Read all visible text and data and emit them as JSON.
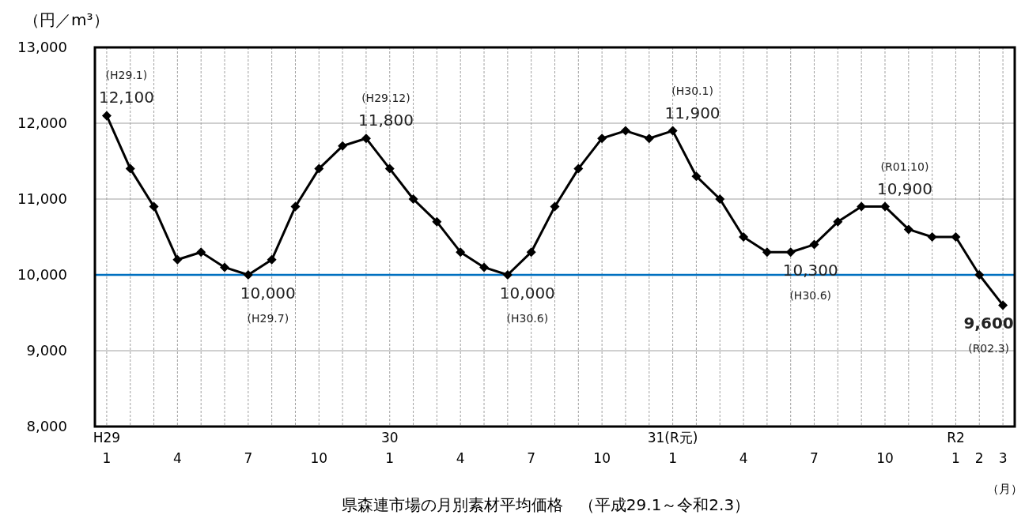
{
  "chart_data": {
    "type": "line",
    "title": "県森連市場の月別素材平均価格　（平成29.1～令和2.3）",
    "ylabel": "（円／m³）",
    "xlabel": "（月）",
    "categories": [
      "H29\n1",
      null,
      null,
      "4",
      null,
      null,
      "7",
      null,
      null,
      "10",
      null,
      null,
      "30\n1",
      null,
      null,
      "4",
      null,
      null,
      "7",
      null,
      null,
      "10",
      null,
      null,
      "31(R元)\n1",
      null,
      null,
      "4",
      null,
      null,
      "7",
      null,
      null,
      "10",
      null,
      null,
      "R2\n1",
      "2",
      "3"
    ],
    "values": [
      12100,
      11400,
      10900,
      10200,
      10300,
      10100,
      10000,
      10200,
      10900,
      11400,
      11700,
      11800,
      11400,
      11000,
      10700,
      10300,
      10100,
      10000,
      10300,
      10900,
      11400,
      11800,
      11900,
      11800,
      11900,
      11300,
      11000,
      10500,
      10300,
      10300,
      10400,
      10700,
      10900,
      10900,
      10600,
      10500,
      10500,
      10000,
      9600
    ],
    "value_labels": [
      "12,100",
      null,
      null,
      null,
      null,
      null,
      "10,000",
      null,
      null,
      null,
      null,
      "11,800",
      null,
      null,
      null,
      null,
      null,
      "10,000",
      null,
      null,
      null,
      null,
      null,
      null,
      "11,900",
      null,
      null,
      null,
      null,
      "10,300",
      null,
      null,
      null,
      "10,900",
      null,
      null,
      null,
      null,
      "**9,600**"
    ],
    "annotations": [
      "(H29.1)",
      "(H29.7)",
      "(H29.12)",
      "(H30.6)",
      "(H30.1)",
      "(H30.6)",
      "(R01.10)",
      "(R02.3)"
    ],
    "color": "#000000",
    "marker": "diamond",
    "grid": true,
    "ylim": [
      8000,
      13000
    ],
    "yticks": [
      {
        "value": 8000,
        "label": "8,000"
      },
      {
        "value": 9000,
        "label": "9,000"
      },
      {
        "value": 10000,
        "label": "10,000"
      },
      {
        "value": 11000,
        "label": "11,000"
      },
      {
        "value": 12000,
        "label": "12,000"
      },
      {
        "value": 13000,
        "label": "13,000"
      }
    ],
    "ref_lines": [
      {
        "axis": "y",
        "value": 10000,
        "color": "#0070c0"
      }
    ]
  }
}
